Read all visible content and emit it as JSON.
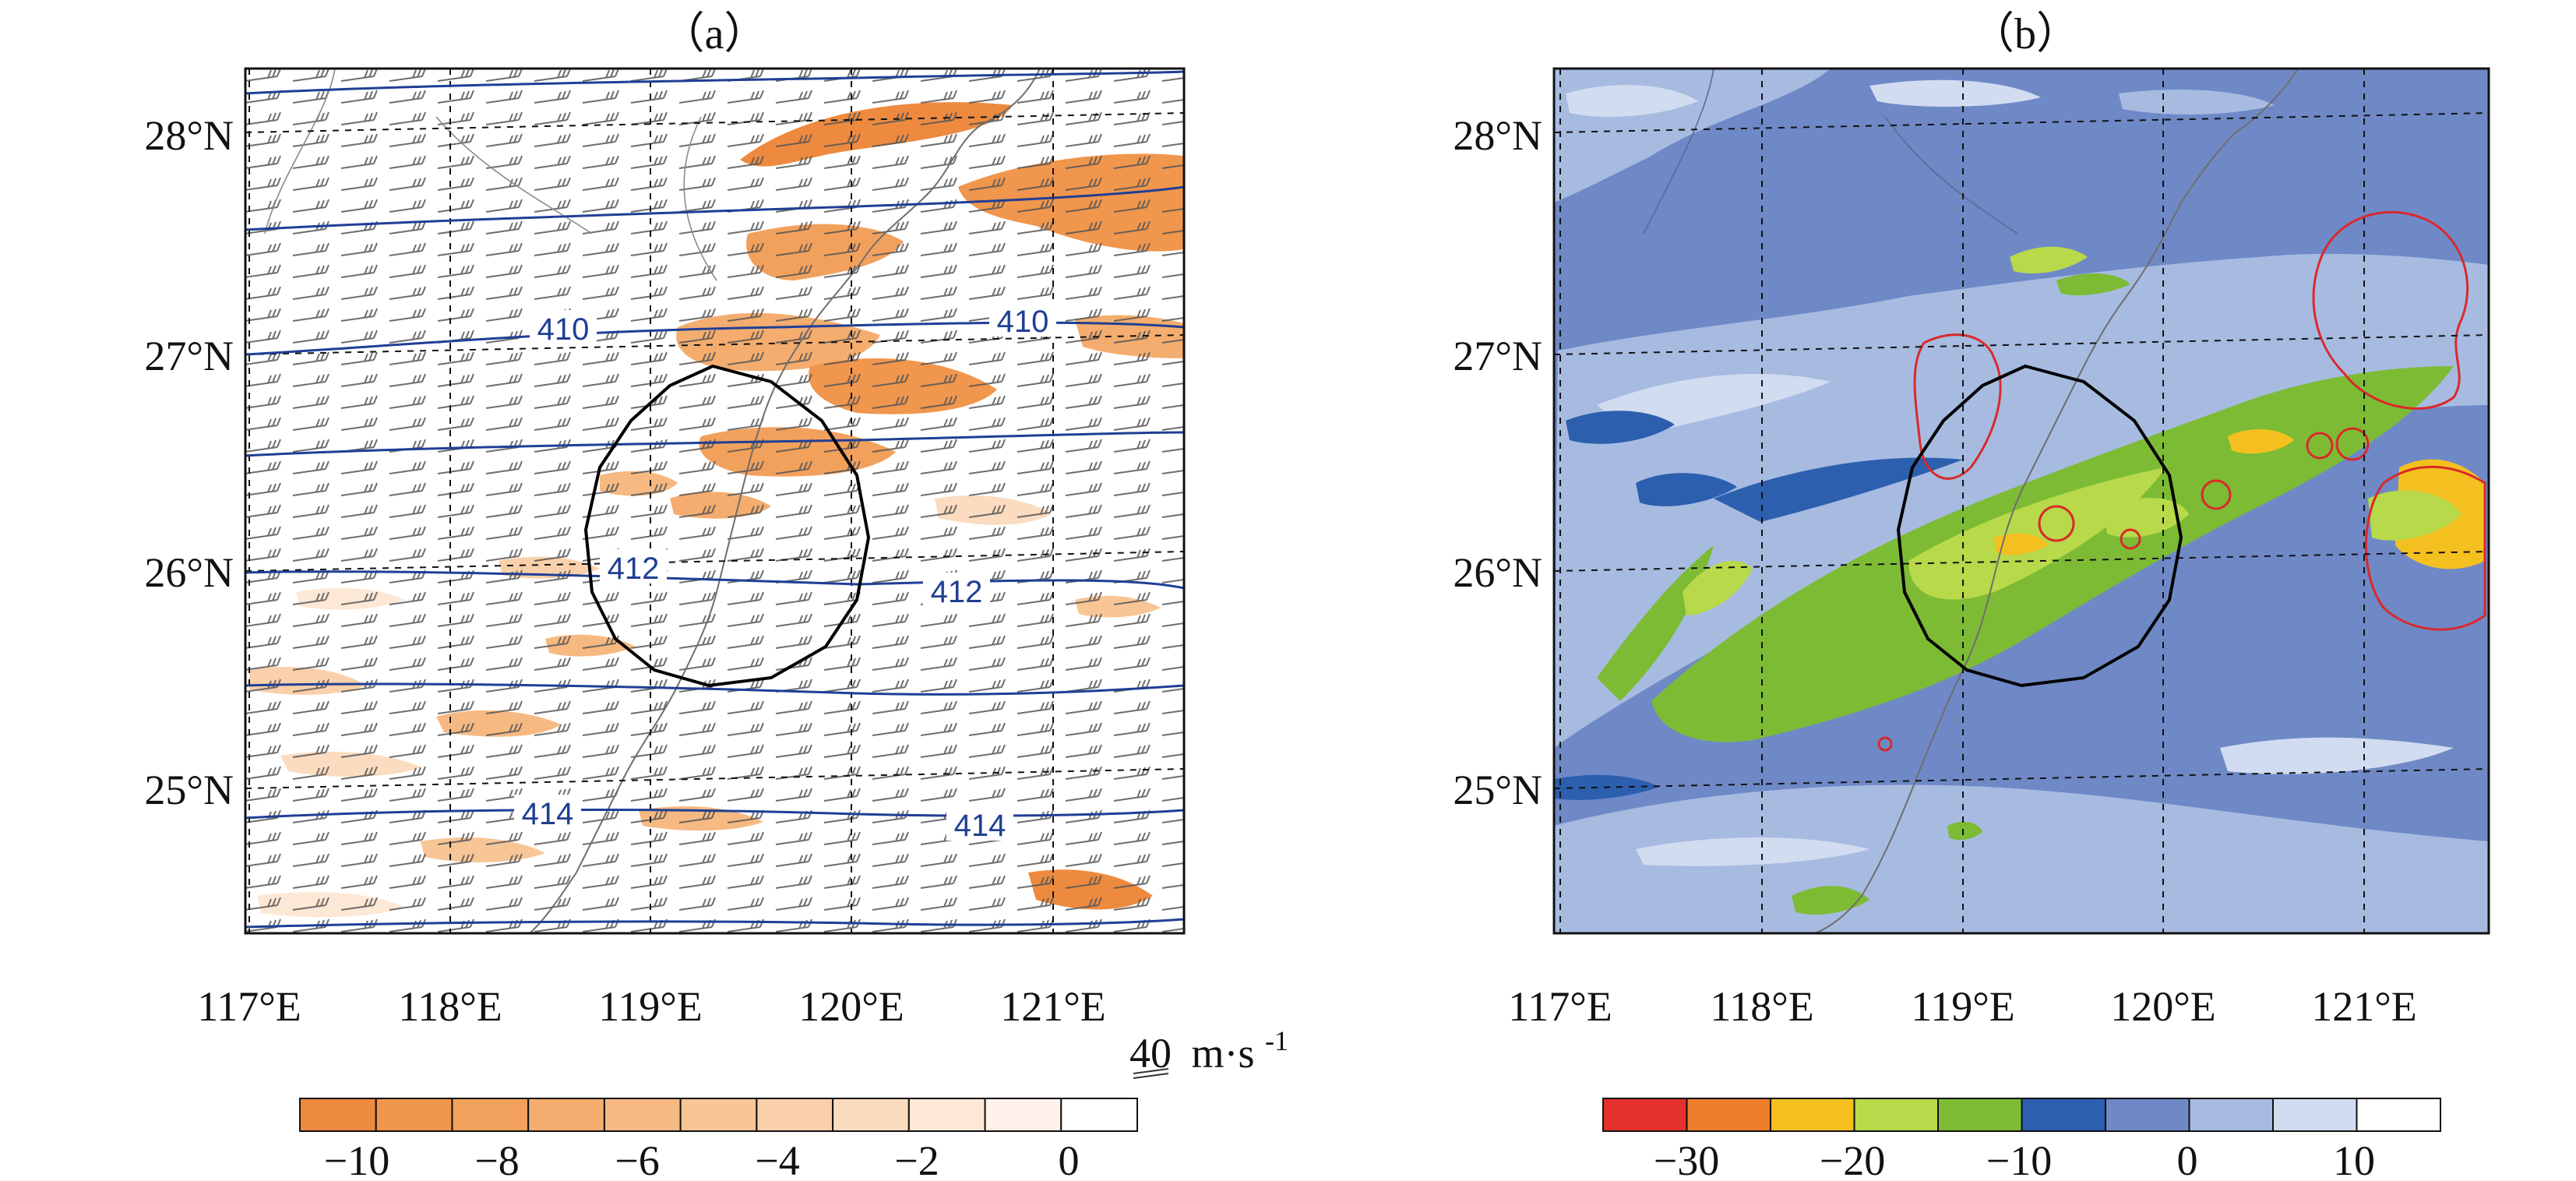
{
  "figure": {
    "panel_a": {
      "title": "（a）",
      "lat_labels": [
        "28°N",
        "27°N",
        "26°N",
        "25°N"
      ],
      "lon_labels": [
        "117°E",
        "118°E",
        "119°E",
        "120°E",
        "121°E"
      ],
      "contour_labels": [
        "410",
        "410",
        "412",
        "412",
        "414",
        "414"
      ],
      "wind_reference": {
        "value": "40",
        "unit": "m·s",
        "exponent": "-1"
      },
      "colorbar": {
        "colors": [
          "#ee8a3f",
          "#f0964d",
          "#f2a15d",
          "#f4ad6e",
          "#f6b981",
          "#f8c596",
          "#f9d0aa",
          "#fbdcc0",
          "#fde8d6",
          "#fef2ea",
          "#ffffff"
        ],
        "tick_labels": [
          "−10",
          "−8",
          "−6",
          "−4",
          "−2",
          "0"
        ]
      }
    },
    "panel_b": {
      "title": "（b）",
      "lat_labels": [
        "28°N",
        "27°N",
        "26°N",
        "25°N"
      ],
      "lon_labels": [
        "117°E",
        "118°E",
        "119°E",
        "120°E",
        "121°E"
      ],
      "colorbar": {
        "colors": [
          "#e5302b",
          "#ee7d2c",
          "#f4c020",
          "#b7d94a",
          "#7dbb35",
          "#2c5fae",
          "#6f89c7",
          "#a7bbe1",
          "#d2dcf0",
          "#ffffff"
        ],
        "tick_labels": [
          "−30",
          "−20",
          "−10",
          "0",
          "10"
        ]
      }
    },
    "colors": {
      "contour": "#1f3f95",
      "coast": "#6e6e6e",
      "circle": "#000000",
      "red_contour": "#d9292a"
    }
  }
}
